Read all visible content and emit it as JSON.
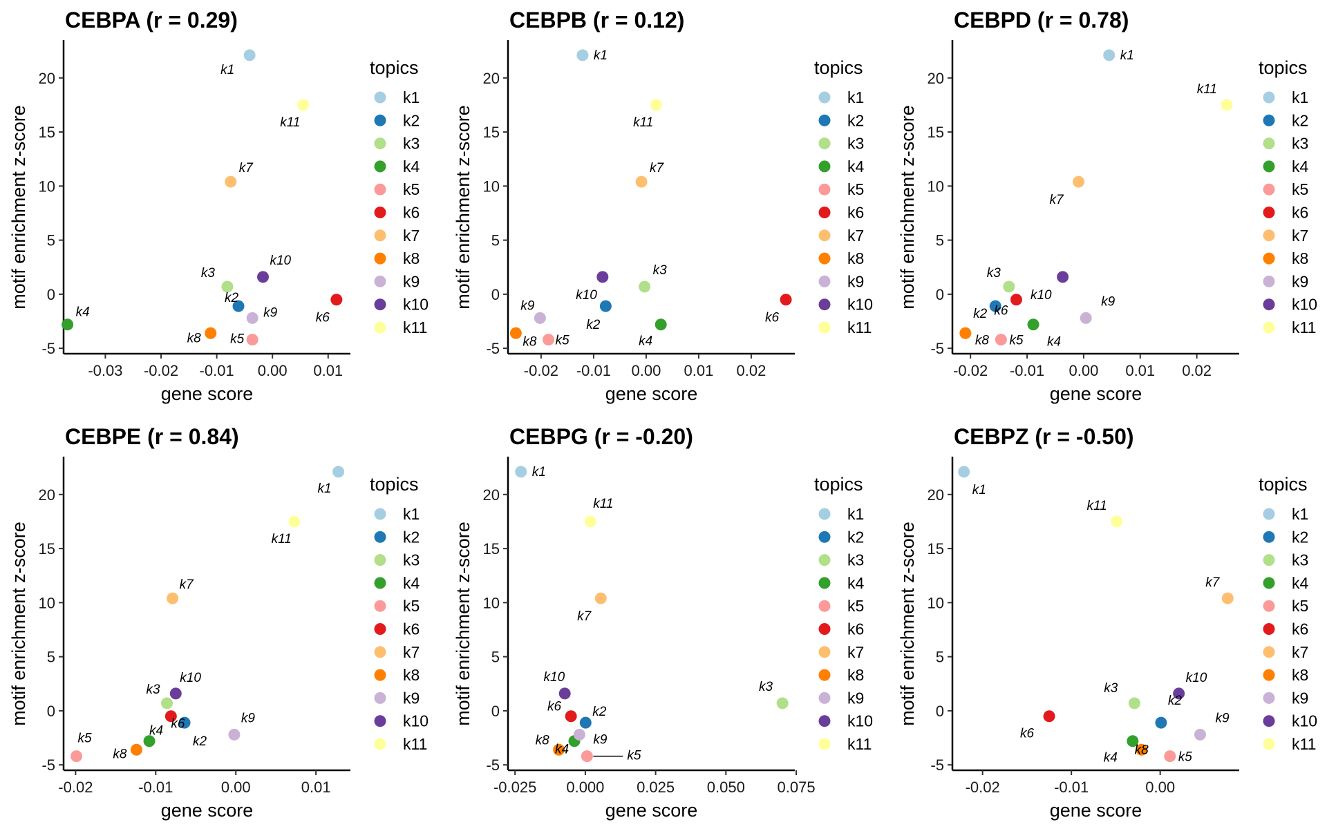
{
  "legend_title": "topics",
  "topics": [
    "k1",
    "k2",
    "k3",
    "k4",
    "k5",
    "k6",
    "k7",
    "k8",
    "k9",
    "k10",
    "k11"
  ],
  "colors": {
    "k1": "#A6CEE3",
    "k2": "#1F78B4",
    "k3": "#B2DF8A",
    "k4": "#33A02C",
    "k5": "#FB9A99",
    "k6": "#E31A1C",
    "k7": "#FDBF6F",
    "k8": "#FF7F00",
    "k9": "#CAB2D6",
    "k10": "#6A3D9A",
    "k11": "#FFFF99"
  },
  "chart_data": [
    {
      "type": "scatter",
      "title": "CEBPA (r = 0.29)",
      "xlabel": "gene score",
      "ylabel": "motif enrichment z-score",
      "xlim": [
        -0.0375,
        0.014
      ],
      "ylim": [
        -5.5,
        23.5
      ],
      "xticks": [
        -0.03,
        -0.02,
        -0.01,
        0.0,
        0.01
      ],
      "xtick_labels": [
        "-0.03",
        "-0.02",
        "-0.01",
        "0.00",
        "0.01"
      ],
      "yticks": [
        -5,
        0,
        5,
        10,
        15,
        20
      ],
      "ytick_labels": [
        "-5",
        "0",
        "5",
        "10",
        "15",
        "20"
      ],
      "legend": "right",
      "grid": false,
      "points": [
        {
          "topic": "k1",
          "x": -0.0041,
          "y": 22.1
        },
        {
          "topic": "k2",
          "x": -0.0061,
          "y": -1.1
        },
        {
          "topic": "k3",
          "x": -0.0081,
          "y": 0.7
        },
        {
          "topic": "k4",
          "x": -0.0368,
          "y": -2.8
        },
        {
          "topic": "k5",
          "x": -0.0036,
          "y": -4.2
        },
        {
          "topic": "k6",
          "x": 0.0115,
          "y": -0.5
        },
        {
          "topic": "k7",
          "x": -0.0075,
          "y": 10.4
        },
        {
          "topic": "k8",
          "x": -0.0111,
          "y": -3.6
        },
        {
          "topic": "k9",
          "x": -0.0036,
          "y": -2.2
        },
        {
          "topic": "k10",
          "x": -0.0017,
          "y": 1.6
        },
        {
          "topic": "k11",
          "x": 0.0055,
          "y": 17.5
        }
      ]
    },
    {
      "type": "scatter",
      "title": "CEBPB (r = 0.12)",
      "xlabel": "gene score",
      "ylabel": "motif enrichment z-score",
      "xlim": [
        -0.0263,
        0.0283
      ],
      "ylim": [
        -5.5,
        23.5
      ],
      "xticks": [
        -0.02,
        -0.01,
        0.0,
        0.01,
        0.02
      ],
      "xtick_labels": [
        "-0.02",
        "-0.01",
        "0.00",
        "0.01",
        "0.02"
      ],
      "yticks": [
        -5,
        0,
        5,
        10,
        15,
        20
      ],
      "ytick_labels": [
        "-5",
        "0",
        "5",
        "10",
        "15",
        "20"
      ],
      "legend": "right",
      "grid": false,
      "points": [
        {
          "topic": "k1",
          "x": -0.0121,
          "y": 22.1
        },
        {
          "topic": "k2",
          "x": -0.0077,
          "y": -1.1
        },
        {
          "topic": "k3",
          "x": -0.0003,
          "y": 0.7
        },
        {
          "topic": "k4",
          "x": 0.0028,
          "y": -2.8
        },
        {
          "topic": "k5",
          "x": -0.0186,
          "y": -4.2
        },
        {
          "topic": "k6",
          "x": 0.0266,
          "y": -0.5
        },
        {
          "topic": "k7",
          "x": -0.0009,
          "y": 10.4
        },
        {
          "topic": "k8",
          "x": -0.0248,
          "y": -3.6
        },
        {
          "topic": "k9",
          "x": -0.0202,
          "y": -2.2
        },
        {
          "topic": "k10",
          "x": -0.0083,
          "y": 1.6
        },
        {
          "topic": "k11",
          "x": 0.0019,
          "y": 17.5
        }
      ]
    },
    {
      "type": "scatter",
      "title": "CEBPD (r = 0.78)",
      "xlabel": "gene score",
      "ylabel": "motif enrichment z-score",
      "xlim": [
        -0.0232,
        0.0275
      ],
      "ylim": [
        -5.5,
        23.5
      ],
      "xticks": [
        -0.02,
        -0.01,
        0.0,
        0.01,
        0.02
      ],
      "xtick_labels": [
        "-0.02",
        "-0.01",
        "0.00",
        "0.01",
        "0.02"
      ],
      "yticks": [
        -5,
        0,
        5,
        10,
        15,
        20
      ],
      "ytick_labels": [
        "-5",
        "0",
        "5",
        "10",
        "15",
        "20"
      ],
      "legend": "right",
      "grid": false,
      "points": [
        {
          "topic": "k1",
          "x": 0.0045,
          "y": 22.1
        },
        {
          "topic": "k2",
          "x": -0.0156,
          "y": -1.1
        },
        {
          "topic": "k3",
          "x": -0.0132,
          "y": 0.7
        },
        {
          "topic": "k4",
          "x": -0.0089,
          "y": -2.8
        },
        {
          "topic": "k5",
          "x": -0.0146,
          "y": -4.2
        },
        {
          "topic": "k6",
          "x": -0.0119,
          "y": -0.5
        },
        {
          "topic": "k7",
          "x": -0.0009,
          "y": 10.4
        },
        {
          "topic": "k8",
          "x": -0.0209,
          "y": -3.6
        },
        {
          "topic": "k9",
          "x": 0.0004,
          "y": -2.2
        },
        {
          "topic": "k10",
          "x": -0.0037,
          "y": 1.6
        },
        {
          "topic": "k11",
          "x": 0.0253,
          "y": 17.5
        }
      ]
    },
    {
      "type": "scatter",
      "title": "CEBPE (r = 0.84)",
      "xlabel": "gene score",
      "ylabel": "motif enrichment z-score",
      "xlim": [
        -0.0215,
        0.0143
      ],
      "ylim": [
        -5.5,
        23.5
      ],
      "xticks": [
        -0.02,
        -0.01,
        0.0,
        0.01
      ],
      "xtick_labels": [
        "-0.02",
        "-0.01",
        "0.00",
        "0.01"
      ],
      "yticks": [
        -5,
        0,
        5,
        10,
        15,
        20
      ],
      "ytick_labels": [
        "-5",
        "0",
        "5",
        "10",
        "15",
        "20"
      ],
      "legend": "right",
      "grid": false,
      "points": [
        {
          "topic": "k1",
          "x": 0.0128,
          "y": 22.1
        },
        {
          "topic": "k2",
          "x": -0.0064,
          "y": -1.1
        },
        {
          "topic": "k3",
          "x": -0.0086,
          "y": 0.7
        },
        {
          "topic": "k4",
          "x": -0.0108,
          "y": -2.8
        },
        {
          "topic": "k5",
          "x": -0.0199,
          "y": -4.2
        },
        {
          "topic": "k6",
          "x": -0.0081,
          "y": -0.5
        },
        {
          "topic": "k7",
          "x": -0.0079,
          "y": 10.4
        },
        {
          "topic": "k8",
          "x": -0.0124,
          "y": -3.6
        },
        {
          "topic": "k9",
          "x": -0.0002,
          "y": -2.2
        },
        {
          "topic": "k10",
          "x": -0.0075,
          "y": 1.6
        },
        {
          "topic": "k11",
          "x": 0.0073,
          "y": 17.5
        }
      ]
    },
    {
      "type": "scatter",
      "title": "CEBPG (r = -0.20)",
      "xlabel": "gene score",
      "ylabel": "motif enrichment z-score",
      "xlim": [
        -0.0275,
        0.0745
      ],
      "ylim": [
        -5.5,
        23.5
      ],
      "xticks": [
        -0.025,
        0.0,
        0.025,
        0.05,
        0.075
      ],
      "xtick_labels": [
        "-0.025",
        "0.000",
        "0.025",
        "0.050",
        "0.075"
      ],
      "yticks": [
        -5,
        0,
        5,
        10,
        15,
        20
      ],
      "ytick_labels": [
        "-5",
        "0",
        "5",
        "10",
        "15",
        "20"
      ],
      "legend": "right",
      "grid": false,
      "points": [
        {
          "topic": "k1",
          "x": -0.0229,
          "y": 22.1
        },
        {
          "topic": "k2",
          "x": 0.0001,
          "y": -1.1
        },
        {
          "topic": "k3",
          "x": 0.0701,
          "y": 0.7
        },
        {
          "topic": "k4",
          "x": -0.0039,
          "y": -2.8
        },
        {
          "topic": "k5",
          "x": 0.0006,
          "y": -4.2
        },
        {
          "topic": "k6",
          "x": -0.0051,
          "y": -0.5
        },
        {
          "topic": "k7",
          "x": 0.0055,
          "y": 10.4
        },
        {
          "topic": "k8",
          "x": -0.0094,
          "y": -3.6
        },
        {
          "topic": "k9",
          "x": -0.0021,
          "y": -2.2
        },
        {
          "topic": "k10",
          "x": -0.0073,
          "y": 1.6
        },
        {
          "topic": "k11",
          "x": 0.0018,
          "y": 17.5
        }
      ]
    },
    {
      "type": "scatter",
      "title": "CEBPZ (r = -0.50)",
      "xlabel": "gene score",
      "ylabel": "motif enrichment z-score",
      "xlim": [
        -0.0234,
        0.0089
      ],
      "ylim": [
        -5.5,
        23.5
      ],
      "xticks": [
        -0.02,
        -0.01,
        0.0
      ],
      "xtick_labels": [
        "-0.02",
        "-0.01",
        "0.00"
      ],
      "yticks": [
        -5,
        0,
        5,
        10,
        15,
        20
      ],
      "ytick_labels": [
        "-5",
        "0",
        "5",
        "10",
        "15",
        "20"
      ],
      "legend": "right",
      "grid": false,
      "points": [
        {
          "topic": "k1",
          "x": -0.0221,
          "y": 22.1
        },
        {
          "topic": "k2",
          "x": 0.0001,
          "y": -1.1
        },
        {
          "topic": "k3",
          "x": -0.0029,
          "y": 0.7
        },
        {
          "topic": "k4",
          "x": -0.0031,
          "y": -2.8
        },
        {
          "topic": "k5",
          "x": 0.0011,
          "y": -4.2
        },
        {
          "topic": "k6",
          "x": -0.0125,
          "y": -0.5
        },
        {
          "topic": "k7",
          "x": 0.0076,
          "y": 10.4
        },
        {
          "topic": "k8",
          "x": -0.0021,
          "y": -3.6
        },
        {
          "topic": "k9",
          "x": 0.0045,
          "y": -2.2
        },
        {
          "topic": "k10",
          "x": 0.0021,
          "y": 1.6
        },
        {
          "topic": "k11",
          "x": -0.0049,
          "y": 17.5
        }
      ]
    }
  ]
}
